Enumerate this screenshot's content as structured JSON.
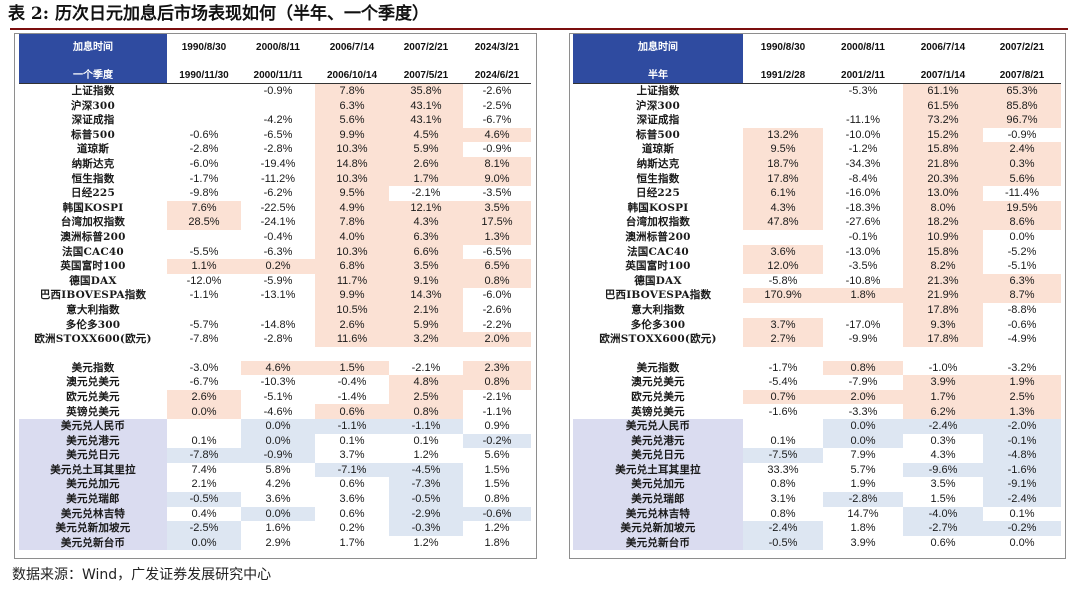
{
  "title": "表 2:  历次日元加息后市场表现如何（半年、一个季度）",
  "source": "数据来源：Wind，广发证券发展研究中心",
  "colors": {
    "header_blue": "#2f4ba0",
    "highlight_pink": "#fbe1d4",
    "highlight_blue": "#dde6f2",
    "label_lavender": "#dadcf0",
    "title_rule": "#7b0e0e"
  },
  "left_table": {
    "header_top": [
      "加息时间",
      "1990/8/30",
      "2000/8/11",
      "2006/7/14",
      "2007/2/21",
      "2024/3/21"
    ],
    "header_bottom": [
      "一个季度",
      "1990/11/30",
      "2000/11/11",
      "2006/10/14",
      "2007/5/21",
      "2024/6/21"
    ],
    "rows": [
      {
        "label": "上证指数",
        "values": [
          "",
          "-0.9%",
          "7.8%",
          "35.8%",
          "-2.6%"
        ],
        "hl": [
          "",
          "",
          "p",
          "p",
          ""
        ]
      },
      {
        "label": "沪深300",
        "values": [
          "",
          "",
          "6.3%",
          "43.1%",
          "-2.5%"
        ],
        "hl": [
          "",
          "",
          "p",
          "p",
          ""
        ]
      },
      {
        "label": "深证成指",
        "values": [
          "",
          "-4.2%",
          "5.6%",
          "43.1%",
          "-6.7%"
        ],
        "hl": [
          "",
          "",
          "p",
          "p",
          ""
        ]
      },
      {
        "label": "标普500",
        "values": [
          "-0.6%",
          "-6.5%",
          "9.9%",
          "4.5%",
          "4.6%"
        ],
        "hl": [
          "",
          "",
          "p",
          "p",
          "p"
        ]
      },
      {
        "label": "道琼斯",
        "values": [
          "-2.8%",
          "-2.8%",
          "10.3%",
          "5.9%",
          "-0.9%"
        ],
        "hl": [
          "",
          "",
          "p",
          "p",
          ""
        ]
      },
      {
        "label": "纳斯达克",
        "values": [
          "-6.0%",
          "-19.4%",
          "14.8%",
          "2.6%",
          "8.1%"
        ],
        "hl": [
          "",
          "",
          "p",
          "p",
          "p"
        ]
      },
      {
        "label": "恒生指数",
        "values": [
          "-1.7%",
          "-11.2%",
          "10.3%",
          "1.7%",
          "9.0%"
        ],
        "hl": [
          "",
          "",
          "p",
          "p",
          "p"
        ]
      },
      {
        "label": "日经225",
        "values": [
          "-9.8%",
          "-6.2%",
          "9.5%",
          "-2.1%",
          "-3.5%"
        ],
        "hl": [
          "",
          "",
          "p",
          "",
          ""
        ]
      },
      {
        "label": "韩国KOSPI",
        "values": [
          "7.6%",
          "-22.5%",
          "4.9%",
          "12.1%",
          "3.5%"
        ],
        "hl": [
          "p",
          "",
          "p",
          "p",
          "p"
        ]
      },
      {
        "label": "台湾加权指数",
        "values": [
          "28.5%",
          "-24.1%",
          "7.8%",
          "4.3%",
          "17.5%"
        ],
        "hl": [
          "p",
          "",
          "p",
          "p",
          "p"
        ]
      },
      {
        "label": "澳洲标普200",
        "values": [
          "",
          "-0.4%",
          "4.0%",
          "6.3%",
          "1.3%"
        ],
        "hl": [
          "",
          "",
          "p",
          "p",
          "p"
        ]
      },
      {
        "label": "法国CAC40",
        "values": [
          "-5.5%",
          "-6.3%",
          "10.3%",
          "6.6%",
          "-6.5%"
        ],
        "hl": [
          "",
          "",
          "p",
          "p",
          ""
        ]
      },
      {
        "label": "英国富时100",
        "values": [
          "1.1%",
          "0.2%",
          "6.8%",
          "3.5%",
          "6.5%"
        ],
        "hl": [
          "p",
          "p",
          "p",
          "p",
          "p"
        ]
      },
      {
        "label": "德国DAX",
        "values": [
          "-12.0%",
          "-5.9%",
          "11.7%",
          "9.1%",
          "0.8%"
        ],
        "hl": [
          "",
          "",
          "p",
          "p",
          "p"
        ]
      },
      {
        "label": "巴西IBOVESPA指数",
        "values": [
          "-1.1%",
          "-13.1%",
          "9.9%",
          "14.3%",
          "-6.0%"
        ],
        "hl": [
          "",
          "",
          "p",
          "p",
          ""
        ]
      },
      {
        "label": "意大利指数",
        "values": [
          "",
          "",
          "10.5%",
          "2.1%",
          "-2.6%"
        ],
        "hl": [
          "",
          "",
          "p",
          "p",
          ""
        ]
      },
      {
        "label": "多伦多300",
        "values": [
          "-5.7%",
          "-14.8%",
          "2.6%",
          "5.9%",
          "-2.2%"
        ],
        "hl": [
          "",
          "",
          "p",
          "p",
          ""
        ]
      },
      {
        "label": "欧洲STOXX600(欧元)",
        "values": [
          "-7.8%",
          "-2.8%",
          "11.6%",
          "3.2%",
          "2.0%"
        ],
        "hl": [
          "",
          "",
          "p",
          "p",
          "p"
        ]
      },
      {
        "gap": true
      },
      {
        "label": "美元指数",
        "values": [
          "-3.0%",
          "4.6%",
          "1.5%",
          "-2.1%",
          "2.3%"
        ],
        "hl": [
          "",
          "p",
          "p",
          "",
          "p"
        ]
      },
      {
        "label": "澳元兑美元",
        "values": [
          "-6.7%",
          "-10.3%",
          "-0.4%",
          "4.8%",
          "0.8%"
        ],
        "hl": [
          "",
          "",
          "",
          "p",
          "p"
        ]
      },
      {
        "label": "欧元兑美元",
        "values": [
          "2.6%",
          "-5.1%",
          "-1.4%",
          "2.5%",
          "-2.1%"
        ],
        "hl": [
          "p",
          "",
          "",
          "p",
          ""
        ]
      },
      {
        "label": "英镑兑美元",
        "values": [
          "0.0%",
          "-4.6%",
          "0.6%",
          "0.8%",
          "-1.1%"
        ],
        "hl": [
          "p",
          "",
          "p",
          "p",
          ""
        ]
      },
      {
        "label": "美元兑人民币",
        "values": [
          "",
          "0.0%",
          "-1.1%",
          "-1.1%",
          "0.9%"
        ],
        "hl": [
          "",
          "b",
          "b",
          "b",
          ""
        ],
        "lb": true
      },
      {
        "label": "美元兑港元",
        "values": [
          "0.1%",
          "0.0%",
          "0.1%",
          "0.1%",
          "-0.2%"
        ],
        "hl": [
          "",
          "b",
          "",
          "",
          "b"
        ],
        "lb": true
      },
      {
        "label": "美元兑日元",
        "values": [
          "-7.8%",
          "-0.9%",
          "3.7%",
          "1.2%",
          "5.6%"
        ],
        "hl": [
          "b",
          "b",
          "",
          "",
          ""
        ],
        "lb": true
      },
      {
        "label": "美元兑土耳其里拉",
        "values": [
          "7.4%",
          "5.8%",
          "-7.1%",
          "-4.5%",
          "1.5%"
        ],
        "hl": [
          "",
          "",
          "b",
          "b",
          ""
        ],
        "lb": true
      },
      {
        "label": "美元兑加元",
        "values": [
          "2.1%",
          "4.2%",
          "0.6%",
          "-7.3%",
          "1.5%"
        ],
        "hl": [
          "",
          "",
          "",
          "b",
          ""
        ],
        "lb": true
      },
      {
        "label": "美元兑瑞郎",
        "values": [
          "-0.5%",
          "3.6%",
          "3.6%",
          "-0.5%",
          "0.8%"
        ],
        "hl": [
          "b",
          "",
          "",
          "b",
          ""
        ],
        "lb": true
      },
      {
        "label": "美元兑林吉特",
        "values": [
          "0.4%",
          "0.0%",
          "0.6%",
          "-2.9%",
          "-0.6%"
        ],
        "hl": [
          "",
          "b",
          "",
          "b",
          "b"
        ],
        "lb": true
      },
      {
        "label": "美元兑新加坡元",
        "values": [
          "-2.5%",
          "1.6%",
          "0.2%",
          "-0.3%",
          "1.2%"
        ],
        "hl": [
          "b",
          "",
          "",
          "b",
          ""
        ],
        "lb": true
      },
      {
        "label": "美元兑新台币",
        "values": [
          "0.0%",
          "2.9%",
          "1.7%",
          "1.2%",
          "1.8%"
        ],
        "hl": [
          "b",
          "",
          "",
          "",
          ""
        ],
        "lb": true
      }
    ]
  },
  "right_table": {
    "header_top": [
      "加息时间",
      "1990/8/30",
      "2000/8/11",
      "2006/7/14",
      "2007/2/21"
    ],
    "header_bottom": [
      "半年",
      "1991/2/28",
      "2001/2/11",
      "2007/1/14",
      "2007/8/21"
    ],
    "rows": [
      {
        "label": "上证指数",
        "values": [
          "",
          "-5.3%",
          "61.1%",
          "65.3%"
        ],
        "hl": [
          "",
          "",
          "p",
          "p"
        ]
      },
      {
        "label": "沪深300",
        "values": [
          "",
          "",
          "61.5%",
          "85.8%"
        ],
        "hl": [
          "",
          "",
          "p",
          "p"
        ]
      },
      {
        "label": "深证成指",
        "values": [
          "",
          "-11.1%",
          "73.2%",
          "96.7%"
        ],
        "hl": [
          "",
          "",
          "p",
          "p"
        ]
      },
      {
        "label": "标普500",
        "values": [
          "13.2%",
          "-10.0%",
          "15.2%",
          "-0.9%"
        ],
        "hl": [
          "p",
          "",
          "p",
          ""
        ]
      },
      {
        "label": "道琼斯",
        "values": [
          "9.5%",
          "-1.2%",
          "15.8%",
          "2.4%"
        ],
        "hl": [
          "p",
          "",
          "p",
          "p"
        ]
      },
      {
        "label": "纳斯达克",
        "values": [
          "18.7%",
          "-34.3%",
          "21.8%",
          "0.3%"
        ],
        "hl": [
          "p",
          "",
          "p",
          "p"
        ]
      },
      {
        "label": "恒生指数",
        "values": [
          "17.8%",
          "-8.4%",
          "20.3%",
          "5.6%"
        ],
        "hl": [
          "p",
          "",
          "p",
          "p"
        ]
      },
      {
        "label": "日经225",
        "values": [
          "6.1%",
          "-16.0%",
          "13.0%",
          "-11.4%"
        ],
        "hl": [
          "p",
          "",
          "p",
          ""
        ]
      },
      {
        "label": "韩国KOSPI",
        "values": [
          "4.3%",
          "-18.3%",
          "8.0%",
          "19.5%"
        ],
        "hl": [
          "p",
          "",
          "p",
          "p"
        ]
      },
      {
        "label": "台湾加权指数",
        "values": [
          "47.8%",
          "-27.6%",
          "18.2%",
          "8.6%"
        ],
        "hl": [
          "p",
          "",
          "p",
          "p"
        ]
      },
      {
        "label": "澳洲标普200",
        "values": [
          "",
          "-0.1%",
          "10.9%",
          "0.0%"
        ],
        "hl": [
          "",
          "",
          "p",
          ""
        ]
      },
      {
        "label": "法国CAC40",
        "values": [
          "3.6%",
          "-13.0%",
          "15.8%",
          "-5.2%"
        ],
        "hl": [
          "p",
          "",
          "p",
          ""
        ]
      },
      {
        "label": "英国富时100",
        "values": [
          "12.0%",
          "-3.5%",
          "8.2%",
          "-5.1%"
        ],
        "hl": [
          "p",
          "",
          "p",
          ""
        ]
      },
      {
        "label": "德国DAX",
        "values": [
          "-5.8%",
          "-10.8%",
          "21.3%",
          "6.3%"
        ],
        "hl": [
          "",
          "",
          "p",
          "p"
        ]
      },
      {
        "label": "巴西IBOVESPA指数",
        "values": [
          "170.9%",
          "1.8%",
          "21.9%",
          "8.7%"
        ],
        "hl": [
          "p",
          "p",
          "p",
          "p"
        ]
      },
      {
        "label": "意大利指数",
        "values": [
          "",
          "",
          "17.8%",
          "-8.8%"
        ],
        "hl": [
          "",
          "",
          "p",
          ""
        ]
      },
      {
        "label": "多伦多300",
        "values": [
          "3.7%",
          "-17.0%",
          "9.3%",
          "-0.6%"
        ],
        "hl": [
          "p",
          "",
          "p",
          ""
        ]
      },
      {
        "label": "欧洲STOXX600(欧元)",
        "values": [
          "2.7%",
          "-9.9%",
          "17.8%",
          "-4.9%"
        ],
        "hl": [
          "p",
          "",
          "p",
          ""
        ]
      },
      {
        "gap": true
      },
      {
        "label": "美元指数",
        "values": [
          "-1.7%",
          "0.8%",
          "-1.0%",
          "-3.2%"
        ],
        "hl": [
          "",
          "p",
          "",
          ""
        ]
      },
      {
        "label": "澳元兑美元",
        "values": [
          "-5.4%",
          "-7.9%",
          "3.9%",
          "1.9%"
        ],
        "hl": [
          "",
          "",
          "p",
          "p"
        ]
      },
      {
        "label": "欧元兑美元",
        "values": [
          "0.7%",
          "2.0%",
          "1.7%",
          "2.5%"
        ],
        "hl": [
          "p",
          "p",
          "p",
          "p"
        ]
      },
      {
        "label": "英镑兑美元",
        "values": [
          "-1.6%",
          "-3.3%",
          "6.2%",
          "1.3%"
        ],
        "hl": [
          "",
          "",
          "p",
          "p"
        ]
      },
      {
        "label": "美元兑人民币",
        "values": [
          "",
          "0.0%",
          "-2.4%",
          "-2.0%"
        ],
        "hl": [
          "",
          "b",
          "b",
          "b"
        ],
        "lb": true
      },
      {
        "label": "美元兑港元",
        "values": [
          "0.1%",
          "0.0%",
          "0.3%",
          "-0.1%"
        ],
        "hl": [
          "",
          "b",
          "",
          "b"
        ],
        "lb": true
      },
      {
        "label": "美元兑日元",
        "values": [
          "-7.5%",
          "7.9%",
          "4.3%",
          "-4.8%"
        ],
        "hl": [
          "b",
          "",
          "",
          "b"
        ],
        "lb": true
      },
      {
        "label": "美元兑土耳其里拉",
        "values": [
          "33.3%",
          "5.7%",
          "-9.6%",
          "-1.6%"
        ],
        "hl": [
          "",
          "",
          "b",
          "b"
        ],
        "lb": true
      },
      {
        "label": "美元兑加元",
        "values": [
          "0.8%",
          "1.9%",
          "3.5%",
          "-9.1%"
        ],
        "hl": [
          "",
          "",
          "",
          "b"
        ],
        "lb": true
      },
      {
        "label": "美元兑瑞郎",
        "values": [
          "3.1%",
          "-2.8%",
          "1.5%",
          "-2.4%"
        ],
        "hl": [
          "",
          "b",
          "",
          "b"
        ],
        "lb": true
      },
      {
        "label": "美元兑林吉特",
        "values": [
          "0.8%",
          "14.7%",
          "-4.0%",
          "0.1%"
        ],
        "hl": [
          "",
          "",
          "b",
          ""
        ],
        "lb": true
      },
      {
        "label": "美元兑新加坡元",
        "values": [
          "-2.4%",
          "1.8%",
          "-2.7%",
          "-0.2%"
        ],
        "hl": [
          "b",
          "",
          "b",
          "b"
        ],
        "lb": true
      },
      {
        "label": "美元兑新台币",
        "values": [
          "-0.5%",
          "3.9%",
          "0.6%",
          "0.0%"
        ],
        "hl": [
          "b",
          "",
          "",
          ""
        ],
        "lb": true
      }
    ]
  }
}
